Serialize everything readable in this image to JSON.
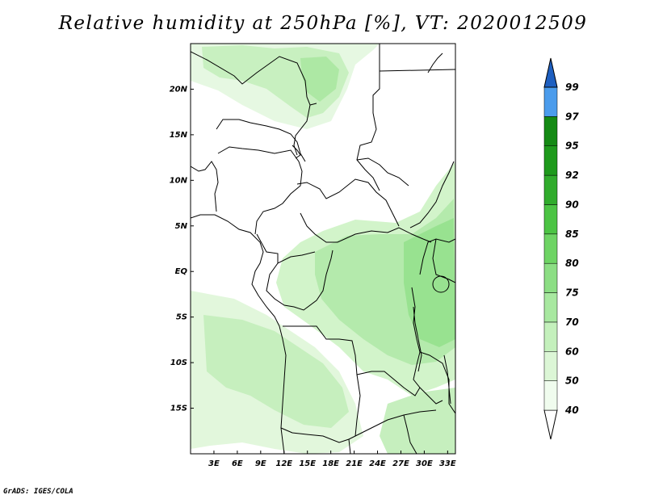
{
  "title": "Relative humidity at 250hPa [%], VT: 2020012509",
  "credit": "GrADS: IGES/COLA",
  "map": {
    "lon_range": [
      0,
      34
    ],
    "lat_range": [
      -20,
      25
    ],
    "lon_ticks": [
      {
        "value": 3,
        "label": "3E"
      },
      {
        "value": 6,
        "label": "6E"
      },
      {
        "value": 9,
        "label": "9E"
      },
      {
        "value": 12,
        "label": "12E"
      },
      {
        "value": 15,
        "label": "15E"
      },
      {
        "value": 18,
        "label": "18E"
      },
      {
        "value": 21,
        "label": "21E"
      },
      {
        "value": 24,
        "label": "24E"
      },
      {
        "value": 27,
        "label": "27E"
      },
      {
        "value": 30,
        "label": "30E"
      },
      {
        "value": 33,
        "label": "33E"
      }
    ],
    "lat_ticks": [
      {
        "value": 20,
        "label": "20N"
      },
      {
        "value": 15,
        "label": "15N"
      },
      {
        "value": 10,
        "label": "10N"
      },
      {
        "value": 5,
        "label": "5N"
      },
      {
        "value": 0,
        "label": "EQ"
      },
      {
        "value": -5,
        "label": "5S"
      },
      {
        "value": -10,
        "label": "10S"
      },
      {
        "value": -15,
        "label": "15S"
      }
    ]
  },
  "colorbar": {
    "levels": [
      {
        "value": "40",
        "color": "#f0fcee"
      },
      {
        "value": "50",
        "color": "#dcf6d6"
      },
      {
        "value": "60",
        "color": "#c4f0bc"
      },
      {
        "value": "70",
        "color": "#a8e8a0"
      },
      {
        "value": "75",
        "color": "#8cde84"
      },
      {
        "value": "80",
        "color": "#6ed464"
      },
      {
        "value": "85",
        "color": "#4cc444"
      },
      {
        "value": "90",
        "color": "#30ac2c"
      },
      {
        "value": "92",
        "color": "#1e9a1c"
      },
      {
        "value": "95",
        "color": "#148a14"
      },
      {
        "value": "97",
        "color": "#4b9cec"
      },
      {
        "value": "99",
        "color": "#2c7ad8"
      }
    ],
    "top_color": "#1e5fc0",
    "bottom_color": "#ffffff"
  }
}
